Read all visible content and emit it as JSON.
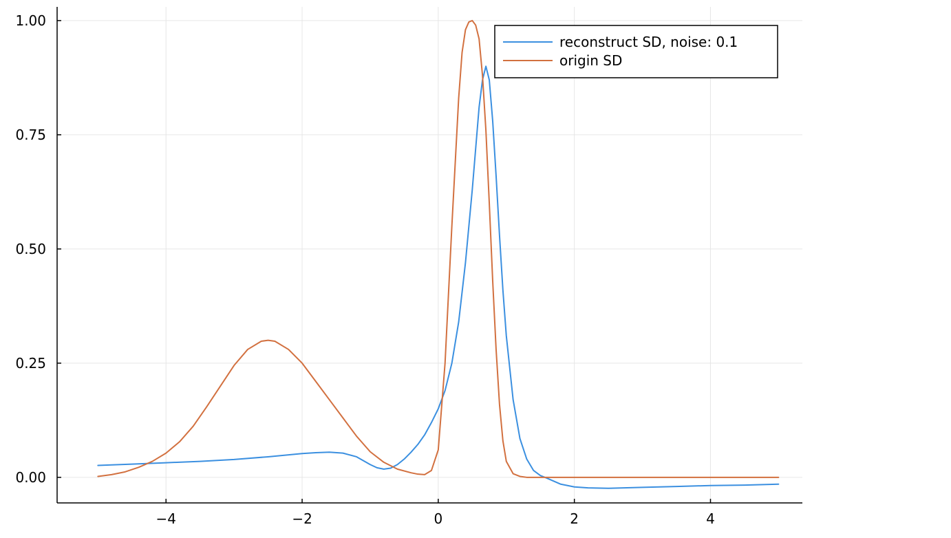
{
  "chart_data": {
    "type": "line",
    "title": "",
    "xlabel": "",
    "ylabel": "",
    "xlim": [
      -5.6,
      5.35
    ],
    "ylim": [
      -0.056,
      1.03
    ],
    "grid": true,
    "legend_position": "top-right",
    "xticks": [
      -4,
      -2,
      0,
      2,
      4
    ],
    "xtick_labels": [
      "−4",
      "−2",
      "0",
      "2",
      "4"
    ],
    "yticks": [
      0.0,
      0.25,
      0.5,
      0.75,
      1.0
    ],
    "ytick_labels": [
      "0.00",
      "0.25",
      "0.50",
      "0.75",
      "1.00"
    ],
    "series": [
      {
        "name": "reconstruct SD, noise: 0.1",
        "color": "#3a8fe0",
        "x": [
          -5.0,
          -4.5,
          -4.0,
          -3.5,
          -3.0,
          -2.5,
          -2.0,
          -1.8,
          -1.6,
          -1.4,
          -1.2,
          -1.0,
          -0.9,
          -0.8,
          -0.7,
          -0.6,
          -0.5,
          -0.4,
          -0.3,
          -0.2,
          -0.1,
          0.0,
          0.1,
          0.2,
          0.3,
          0.4,
          0.5,
          0.55,
          0.6,
          0.65,
          0.7,
          0.75,
          0.8,
          0.85,
          0.9,
          0.95,
          1.0,
          1.1,
          1.2,
          1.3,
          1.4,
          1.5,
          1.6,
          1.8,
          2.0,
          2.2,
          2.5,
          3.0,
          3.5,
          4.0,
          4.5,
          5.0
        ],
        "y": [
          0.026,
          0.029,
          0.032,
          0.035,
          0.039,
          0.045,
          0.052,
          0.054,
          0.055,
          0.053,
          0.045,
          0.028,
          0.021,
          0.018,
          0.02,
          0.028,
          0.04,
          0.055,
          0.072,
          0.093,
          0.12,
          0.15,
          0.19,
          0.25,
          0.34,
          0.47,
          0.63,
          0.72,
          0.81,
          0.87,
          0.9,
          0.87,
          0.78,
          0.66,
          0.53,
          0.41,
          0.31,
          0.17,
          0.085,
          0.04,
          0.015,
          0.004,
          -0.002,
          -0.015,
          -0.021,
          -0.023,
          -0.024,
          -0.022,
          -0.02,
          -0.018,
          -0.017,
          -0.015
        ]
      },
      {
        "name": "origin SD",
        "color": "#d2703f",
        "x": [
          -5.0,
          -4.8,
          -4.6,
          -4.4,
          -4.2,
          -4.0,
          -3.8,
          -3.6,
          -3.4,
          -3.2,
          -3.0,
          -2.8,
          -2.6,
          -2.5,
          -2.4,
          -2.2,
          -2.0,
          -1.8,
          -1.6,
          -1.4,
          -1.2,
          -1.0,
          -0.8,
          -0.6,
          -0.4,
          -0.3,
          -0.2,
          -0.1,
          0.0,
          0.1,
          0.2,
          0.3,
          0.35,
          0.4,
          0.45,
          0.5,
          0.55,
          0.6,
          0.65,
          0.7,
          0.75,
          0.8,
          0.85,
          0.9,
          0.95,
          1.0,
          1.1,
          1.2,
          1.3,
          1.5,
          2.0,
          3.0,
          4.0,
          5.0
        ],
        "y": [
          0.002,
          0.006,
          0.012,
          0.022,
          0.035,
          0.053,
          0.078,
          0.112,
          0.155,
          0.2,
          0.245,
          0.28,
          0.298,
          0.3,
          0.298,
          0.28,
          0.25,
          0.21,
          0.17,
          0.13,
          0.09,
          0.056,
          0.033,
          0.018,
          0.01,
          0.007,
          0.006,
          0.015,
          0.06,
          0.25,
          0.55,
          0.83,
          0.93,
          0.98,
          0.997,
          1.0,
          0.99,
          0.96,
          0.88,
          0.76,
          0.6,
          0.43,
          0.28,
          0.16,
          0.08,
          0.035,
          0.008,
          0.002,
          0.0,
          0.0,
          0.0,
          0.0,
          0.0,
          0.0
        ]
      }
    ]
  }
}
